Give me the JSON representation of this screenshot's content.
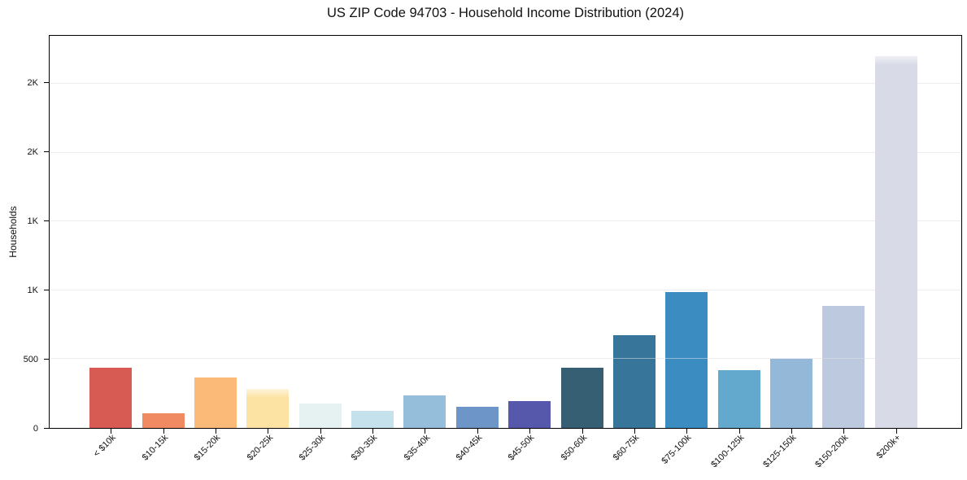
{
  "chart_data": {
    "type": "bar",
    "title": "US ZIP Code 94703 - Household Income Distribution (2024)",
    "xlabel": "",
    "ylabel": "Households",
    "categories": [
      "< $10k",
      "$10-15k",
      "$15-20k",
      "$20-25k",
      "$25-30k",
      "$30-35k",
      "$35-40k",
      "$40-45k",
      "$45-50k",
      "$50-60k",
      "$60-75k",
      "$75-100k",
      "$100-125k",
      "$125-150k",
      "$150-200k",
      "$200k+"
    ],
    "values": [
      435,
      104,
      365,
      281,
      178,
      124,
      237,
      155,
      194,
      436,
      673,
      990,
      418,
      505,
      885,
      2700
    ],
    "bar_colors": [
      "#d75b53",
      "#f08a63",
      "#fcba79",
      "#fde3a3",
      "#e6f2f1",
      "#c4e1ec",
      "#94bed9",
      "#6d95c8",
      "#5659ab",
      "#365f74",
      "#38759a",
      "#3a8cc1",
      "#63a8cd",
      "#94b8d8",
      "#bdc9de",
      "#d8dae7"
    ],
    "ylim": [
      0,
      2850
    ],
    "yticks": [
      {
        "value": 0,
        "label": "0"
      },
      {
        "value": 500,
        "label": "500"
      },
      {
        "value": 1000,
        "label": "1K"
      },
      {
        "value": 1500,
        "label": "1K"
      },
      {
        "value": 2000,
        "label": "2K"
      },
      {
        "value": 2500,
        "label": "2K"
      }
    ],
    "grid": "horizontal",
    "legend": "none",
    "x_tick_rotation": 45,
    "soft_top_indices": [
      3,
      15
    ],
    "axis_color": "#000000",
    "grid_color": "#ececf0",
    "background_color": "#ffffff"
  }
}
